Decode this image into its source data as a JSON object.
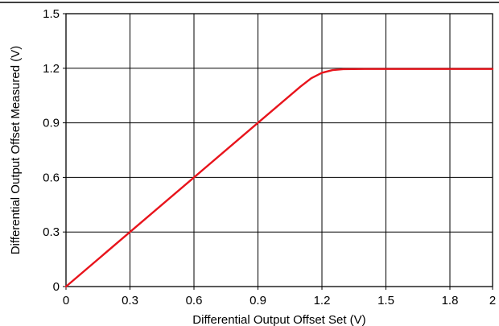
{
  "chart_data": {
    "type": "line",
    "title": "",
    "xlabel": "Differential Output Offset Set (V)",
    "ylabel": "Differential Output Offset Measured (V)",
    "xlim": [
      0,
      2
    ],
    "ylim": [
      0,
      1.5
    ],
    "x_ticks": [
      0,
      0.3,
      0.6,
      0.9,
      1.2,
      1.5,
      1.8,
      2
    ],
    "x_tick_labels": [
      "0",
      "0.3",
      "0.6",
      "0.9",
      "1.2",
      "1.5",
      "1.8",
      "2"
    ],
    "y_ticks": [
      0,
      0.3,
      0.6,
      0.9,
      1.2,
      1.5
    ],
    "y_tick_labels": [
      "0",
      "0.3",
      "0.6",
      "0.9",
      "1.2",
      "1.5"
    ],
    "grid": true,
    "legend": "none",
    "series": [
      {
        "color": "#e8141c",
        "x": [
          0,
          0.3,
          0.6,
          0.9,
          1.1,
          1.15,
          1.2,
          1.25,
          1.3,
          1.4,
          1.6,
          1.8,
          2.0
        ],
        "y": [
          0,
          0.3,
          0.6,
          0.9,
          1.1,
          1.145,
          1.175,
          1.19,
          1.195,
          1.196,
          1.196,
          1.196,
          1.196
        ]
      }
    ],
    "top_rule": true
  }
}
